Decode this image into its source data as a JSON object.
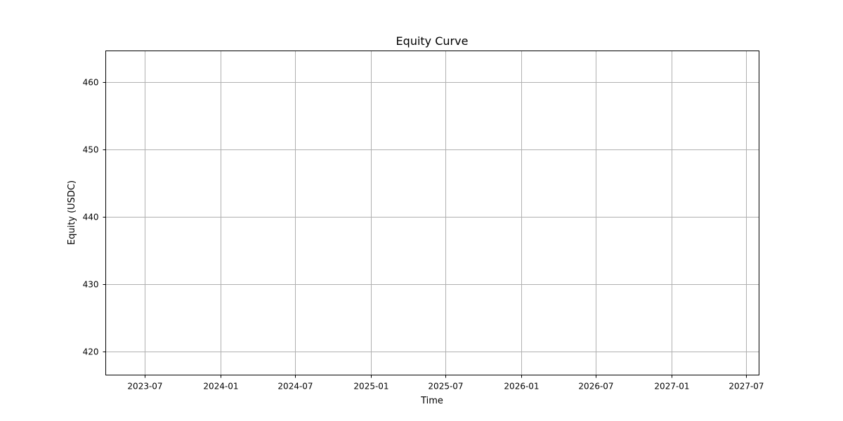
{
  "chart_data": {
    "type": "line",
    "title": "Equity Curve",
    "xlabel": "Time",
    "ylabel": "Equity (USDC)",
    "xlim": [
      "2023-03-28",
      "2027-08-02"
    ],
    "ylim": [
      416.5,
      464.6
    ],
    "grid": true,
    "series": [],
    "x_ticks": [
      {
        "value": "2023-07-01",
        "label": "2023-07"
      },
      {
        "value": "2024-01-01",
        "label": "2024-01"
      },
      {
        "value": "2024-07-01",
        "label": "2024-07"
      },
      {
        "value": "2025-01-01",
        "label": "2025-01"
      },
      {
        "value": "2025-07-01",
        "label": "2025-07"
      },
      {
        "value": "2026-01-01",
        "label": "2026-01"
      },
      {
        "value": "2026-07-01",
        "label": "2026-07"
      },
      {
        "value": "2027-01-01",
        "label": "2027-01"
      },
      {
        "value": "2027-07-01",
        "label": "2027-07"
      }
    ],
    "y_ticks": [
      {
        "value": 420,
        "label": "420"
      },
      {
        "value": 430,
        "label": "430"
      },
      {
        "value": 440,
        "label": "440"
      },
      {
        "value": 450,
        "label": "450"
      },
      {
        "value": 460,
        "label": "460"
      }
    ],
    "colors": {
      "grid": "#b0b0b0",
      "axis": "#000000",
      "background": "#ffffff"
    }
  }
}
